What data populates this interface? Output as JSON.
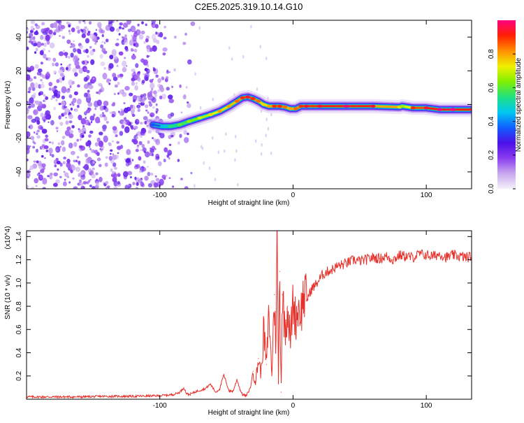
{
  "title": "C2E5.2025.319.10.14.G10",
  "colors": {
    "snr_line": "#e8302a",
    "axis": "#000000",
    "background": "#ffffff",
    "colorbar_stops": [
      "#f4f0fa",
      "#c8a8ee",
      "#8a3cf0",
      "#4a10e8",
      "#1060ff",
      "#00c8f0",
      "#20e080",
      "#80f000",
      "#f0f000",
      "#ff9000",
      "#ff2000",
      "#ff0080"
    ]
  },
  "chart_data": [
    {
      "type": "heatmap",
      "name": "spectrogram",
      "title": "C2E5.2025.319.10.14.G10",
      "xlabel": "Height of straight line (km)",
      "ylabel": "Frequency (Hz)",
      "xlim": [
        -200,
        134
      ],
      "ylim": [
        -50,
        50
      ],
      "x_ticks": [
        -100,
        0,
        100
      ],
      "x_ticklabels": [
        "-100",
        "0",
        "100"
      ],
      "y_ticks": [
        -40,
        -20,
        0,
        20,
        40
      ],
      "y_ticklabels": [
        "-40",
        "-20",
        "0",
        "20",
        "40"
      ],
      "colorbar": {
        "label": "Normalized spectral amplitude",
        "lim": [
          0,
          1
        ],
        "ticks": [
          0.0,
          0.2,
          0.4,
          0.6,
          0.8
        ],
        "ticklabels": [
          "0.0",
          "0.2",
          "0.4",
          "0.6",
          "0.8"
        ],
        "colormap": "white-purple-blue-cyan-green-yellow-red-magenta"
      },
      "noise_region_x": [
        -200,
        -75
      ],
      "ridge": {
        "x": [
          -105,
          -98,
          -92,
          -85,
          -78,
          -70,
          -62,
          -55,
          -48,
          -42,
          -38,
          -34,
          -30,
          -26,
          -22,
          -18,
          -14,
          -10,
          -6,
          -2,
          2,
          6,
          10,
          20,
          40,
          60,
          80,
          82,
          90,
          100,
          110,
          120,
          134
        ],
        "y": [
          -12,
          -13,
          -13,
          -12,
          -10,
          -8,
          -6,
          -4,
          -1,
          2,
          4,
          4.5,
          3.5,
          2,
          0,
          -1,
          -1,
          -1,
          -1.5,
          -2.5,
          -2.5,
          -1,
          -1,
          -1,
          -1,
          -1,
          -1.5,
          -1,
          -2,
          -2,
          -3,
          -3,
          -3
        ],
        "amplitude": [
          0.3,
          0.4,
          0.5,
          0.55,
          0.6,
          0.65,
          0.7,
          0.75,
          0.75,
          0.8,
          0.85,
          0.9,
          0.85,
          0.8,
          0.7,
          0.75,
          0.85,
          0.85,
          0.8,
          0.75,
          0.8,
          0.85,
          0.9,
          0.9,
          0.95,
          0.9,
          0.7,
          0.6,
          0.85,
          0.9,
          0.95,
          0.95,
          0.9
        ]
      }
    },
    {
      "type": "line",
      "name": "snr",
      "xlabel": "Height of straight line (km)",
      "ylabel": "SNR (10 * v/v)",
      "y_multiplier": "(x10^4)",
      "xlim": [
        -200,
        134
      ],
      "ylim": [
        0,
        14500
      ],
      "x_ticks": [
        -100,
        0,
        100
      ],
      "x_ticklabels": [
        "-100",
        "0",
        "100"
      ],
      "y_ticks": [
        2000,
        4000,
        6000,
        8000,
        10000,
        12000,
        14000
      ],
      "y_ticklabels": [
        "0.2",
        "0.4",
        "0.6",
        "0.8",
        "1.0",
        "1.2",
        "1.4"
      ],
      "series": [
        {
          "x": [
            -200,
            -180,
            -160,
            -140,
            -120,
            -100,
            -90,
            -85,
            -82,
            -80,
            -78,
            -72,
            -66,
            -62,
            -58,
            -55,
            -52,
            -50,
            -48,
            -45,
            -42,
            -40,
            -38,
            -35,
            -32,
            -30,
            -28,
            -26,
            -24,
            -22,
            -20,
            -18,
            -16,
            -14,
            -13,
            -12,
            -11,
            -10,
            -9,
            -8,
            -6,
            -4,
            -2,
            0,
            2,
            4,
            6,
            8,
            10,
            14,
            18,
            22,
            26,
            30,
            34,
            38,
            42,
            46,
            50,
            55,
            60,
            65,
            70,
            75,
            80,
            85,
            90,
            95,
            100,
            105,
            110,
            115,
            120,
            125,
            130,
            134
          ],
          "y": [
            200,
            200,
            200,
            250,
            250,
            300,
            400,
            600,
            1000,
            500,
            400,
            700,
            900,
            1300,
            600,
            900,
            2100,
            1400,
            700,
            700,
            1700,
            900,
            400,
            300,
            1000,
            2400,
            1500,
            3500,
            2200,
            6000,
            3000,
            7500,
            2000,
            9000,
            4000,
            14500,
            1500,
            11000,
            600,
            9000,
            6000,
            8000,
            5000,
            8500,
            6800,
            8000,
            7500,
            9000,
            8500,
            9500,
            10000,
            10700,
            11000,
            11200,
            11500,
            11600,
            11800,
            12000,
            11900,
            12000,
            12200,
            12100,
            12300,
            12000,
            12400,
            12300,
            12200,
            12500,
            12400,
            12300,
            12500,
            12200,
            12400,
            12300,
            12200,
            12300
          ]
        }
      ]
    }
  ]
}
